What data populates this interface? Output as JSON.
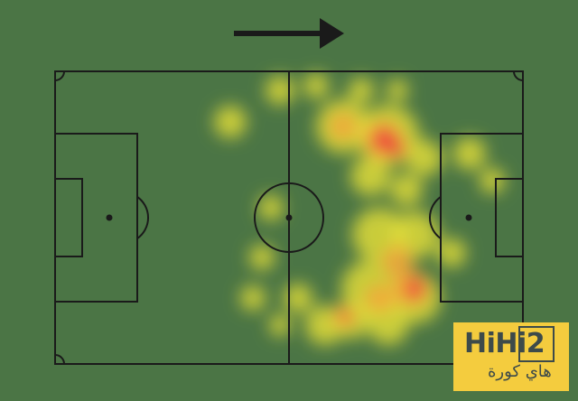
{
  "pitch": {
    "background_color": "#4b7545",
    "line_color": "#1a1a1a",
    "attack_direction_icon": "arrow-right-icon",
    "heat_colors": [
      "#e9e23a",
      "#f2a83a",
      "#ec3b3b"
    ]
  },
  "watermark": {
    "brand": "HiHi2",
    "arabic": "هاي كورة",
    "background_color": "#f4cc3e",
    "text_color": "#3d4a4a"
  }
}
